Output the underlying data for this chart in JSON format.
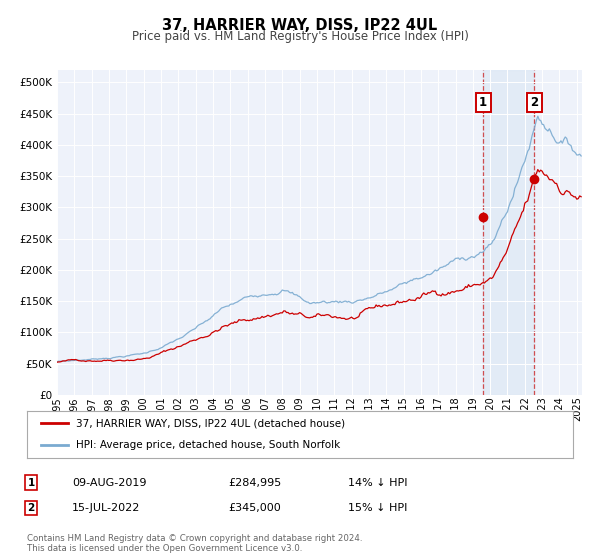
{
  "title": "37, HARRIER WAY, DISS, IP22 4UL",
  "subtitle": "Price paid vs. HM Land Registry's House Price Index (HPI)",
  "background_color": "#ffffff",
  "plot_bg_color": "#eef2fa",
  "grid_color": "#ffffff",
  "red_line_color": "#cc0000",
  "blue_line_color": "#7aaad0",
  "shade_color": "#dce8f5",
  "marker1_date": 2019.6,
  "marker1_value": 284995,
  "marker2_date": 2022.54,
  "marker2_value": 345000,
  "marker1_text": "09-AUG-2019",
  "marker1_price": "£284,995",
  "marker1_hpi": "14% ↓ HPI",
  "marker2_text": "15-JUL-2022",
  "marker2_price": "£345,000",
  "marker2_hpi": "15% ↓ HPI",
  "ylim": [
    0,
    520000
  ],
  "xlim_start": 1995.0,
  "xlim_end": 2025.3,
  "legend_entry1": "37, HARRIER WAY, DISS, IP22 4UL (detached house)",
  "legend_entry2": "HPI: Average price, detached house, South Norfolk",
  "footer1": "Contains HM Land Registry data © Crown copyright and database right 2024.",
  "footer2": "This data is licensed under the Open Government Licence v3.0."
}
